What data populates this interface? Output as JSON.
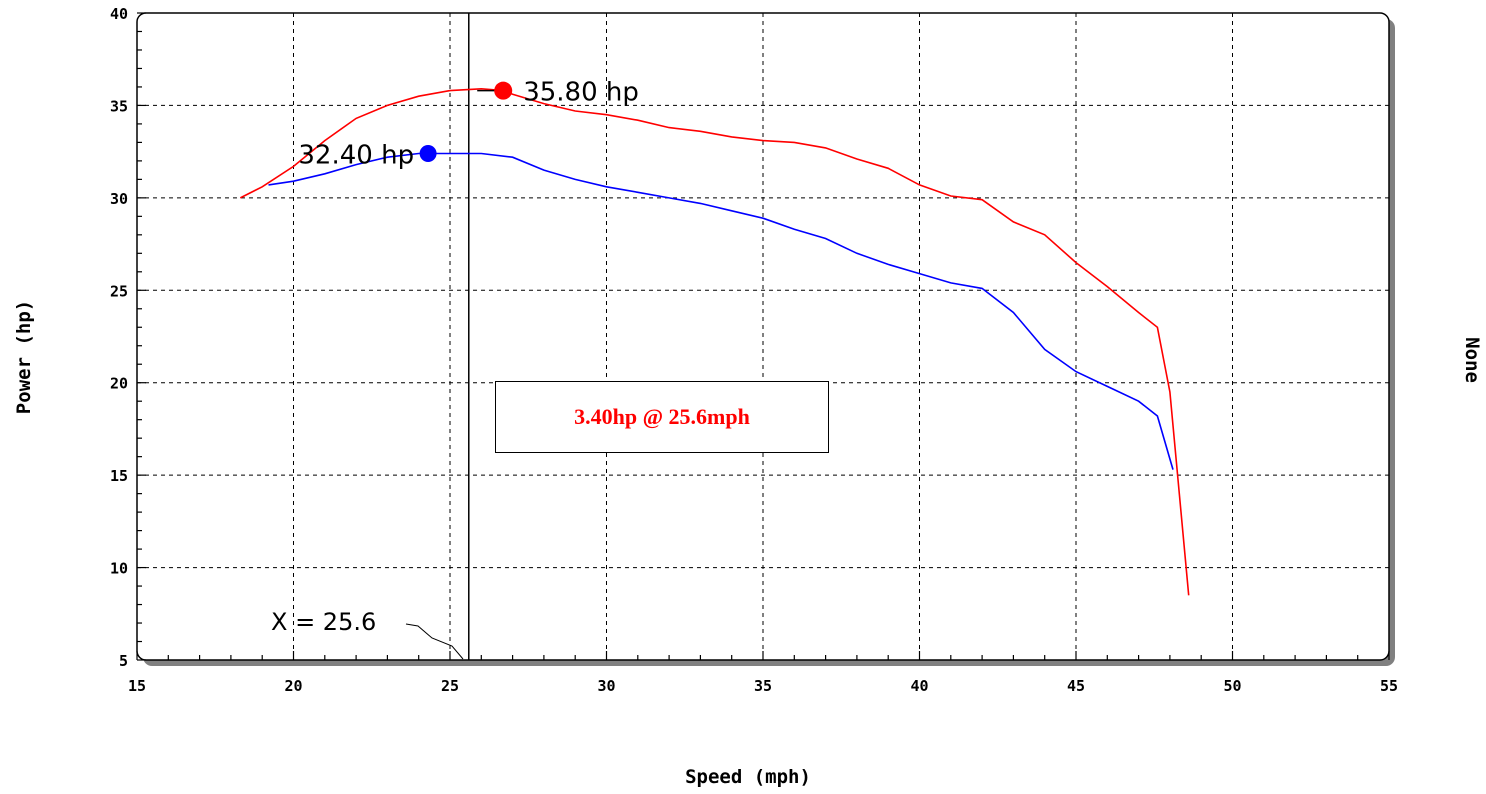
{
  "chart_data": {
    "type": "line",
    "title": "",
    "xlabel": "Speed (mph)",
    "ylabel": "Power (hp)",
    "right_label": "None",
    "xlim": [
      15,
      55
    ],
    "ylim": [
      5,
      40
    ],
    "xticks": [
      15,
      20,
      25,
      30,
      35,
      40,
      45,
      50,
      55
    ],
    "yticks": [
      5,
      10,
      15,
      20,
      25,
      30,
      35,
      40
    ],
    "grid": true,
    "series": [
      {
        "color": "#ff0000",
        "points": [
          [
            18.3,
            30.0
          ],
          [
            19.0,
            30.6
          ],
          [
            20.0,
            31.7
          ],
          [
            21.0,
            33.1
          ],
          [
            22.0,
            34.3
          ],
          [
            23.0,
            35.0
          ],
          [
            24.0,
            35.5
          ],
          [
            25.0,
            35.8
          ],
          [
            26.0,
            35.9
          ],
          [
            26.7,
            35.8
          ],
          [
            27.0,
            35.6
          ],
          [
            28.0,
            35.1
          ],
          [
            29.0,
            34.7
          ],
          [
            30.0,
            34.5
          ],
          [
            31.0,
            34.2
          ],
          [
            32.0,
            33.8
          ],
          [
            33.0,
            33.6
          ],
          [
            34.0,
            33.3
          ],
          [
            35.0,
            33.1
          ],
          [
            36.0,
            33.0
          ],
          [
            37.0,
            32.7
          ],
          [
            38.0,
            32.1
          ],
          [
            39.0,
            31.6
          ],
          [
            40.0,
            30.7
          ],
          [
            41.0,
            30.1
          ],
          [
            42.0,
            29.9
          ],
          [
            43.0,
            28.7
          ],
          [
            44.0,
            28.0
          ],
          [
            45.0,
            26.5
          ],
          [
            46.0,
            25.2
          ],
          [
            47.0,
            23.8
          ],
          [
            47.6,
            23.0
          ],
          [
            48.0,
            19.5
          ],
          [
            48.3,
            14.0
          ],
          [
            48.6,
            8.5
          ]
        ]
      },
      {
        "color": "#0000ff",
        "points": [
          [
            19.2,
            30.7
          ],
          [
            20.0,
            30.9
          ],
          [
            21.0,
            31.3
          ],
          [
            22.0,
            31.8
          ],
          [
            23.0,
            32.2
          ],
          [
            24.0,
            32.4
          ],
          [
            25.0,
            32.4
          ],
          [
            26.0,
            32.4
          ],
          [
            27.0,
            32.2
          ],
          [
            28.0,
            31.5
          ],
          [
            29.0,
            31.0
          ],
          [
            30.0,
            30.6
          ],
          [
            31.0,
            30.3
          ],
          [
            32.0,
            30.0
          ],
          [
            33.0,
            29.7
          ],
          [
            34.0,
            29.3
          ],
          [
            35.0,
            28.9
          ],
          [
            36.0,
            28.3
          ],
          [
            37.0,
            27.8
          ],
          [
            38.0,
            27.0
          ],
          [
            39.0,
            26.4
          ],
          [
            40.0,
            25.9
          ],
          [
            41.0,
            25.4
          ],
          [
            42.0,
            25.1
          ],
          [
            43.0,
            23.8
          ],
          [
            44.0,
            21.8
          ],
          [
            45.0,
            20.6
          ],
          [
            46.0,
            19.8
          ],
          [
            47.0,
            19.0
          ],
          [
            47.6,
            18.2
          ],
          [
            48.1,
            15.3
          ]
        ]
      }
    ],
    "peak_markers": [
      {
        "x": 26.7,
        "y": 35.8,
        "color": "#ff0000",
        "label": "35.80 hp"
      },
      {
        "x": 24.3,
        "y": 32.4,
        "color": "#0000ff",
        "label": "32.40 hp"
      }
    ],
    "cursor": {
      "x": 25.6,
      "label": "X = 25.6"
    },
    "readout": "3.40hp @ 25.6mph"
  }
}
